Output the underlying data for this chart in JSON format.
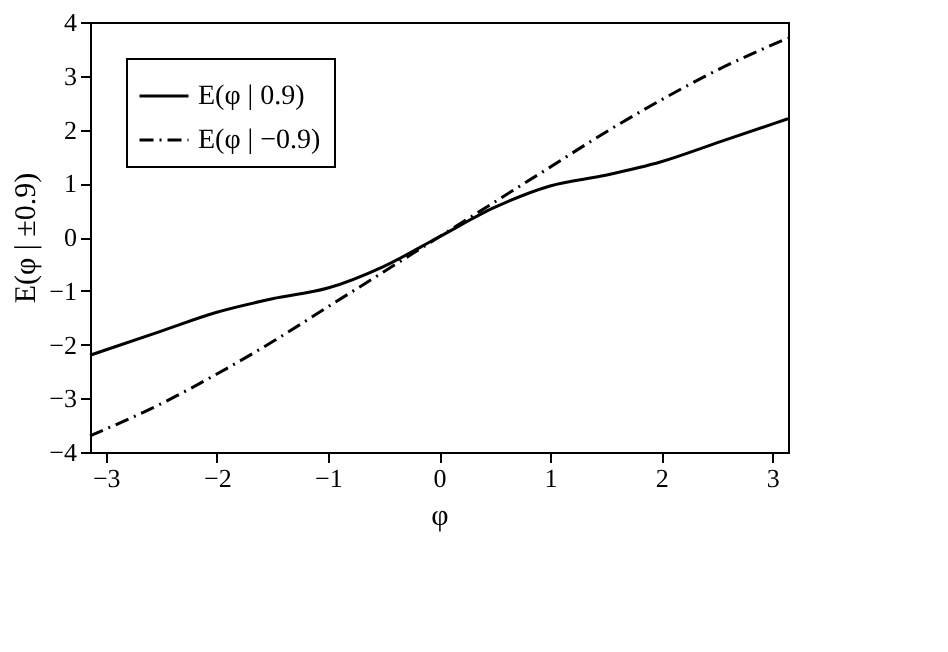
{
  "chart_data": {
    "type": "line",
    "xlabel": "φ",
    "ylabel": "E(φ | ±0.9)",
    "xlim": [
      -3.1416,
      3.1416
    ],
    "xticks": [
      -3,
      -2,
      -1,
      0,
      1,
      2,
      3
    ],
    "ylim": [
      -4,
      4
    ],
    "yticks": [
      -4,
      -3,
      -2,
      -1,
      0,
      1,
      2,
      3,
      4
    ],
    "grid": false,
    "legend": "top left",
    "marker": "none",
    "series": [
      {
        "name": "E(φ | 0.9)",
        "color": "#000000",
        "line_style": "solid",
        "x": [
          -3.1416,
          -2.5,
          -2,
          -1.5,
          -1,
          -0.5,
          0,
          0.5,
          1,
          1.5,
          2,
          2.5,
          3.1416
        ],
        "values": [
          -2.2,
          -1.75,
          -1.4,
          -1.15,
          -0.95,
          -0.55,
          0,
          0.55,
          0.95,
          1.15,
          1.4,
          1.75,
          2.2
        ]
      },
      {
        "name": "E(φ | −0.9)",
        "color": "#000000",
        "line_style": "dashdot",
        "x": [
          -3.1416,
          -2.5,
          -2,
          -1.5,
          -1,
          -0.5,
          0,
          0.5,
          1,
          1.5,
          2,
          2.5,
          3.1416
        ],
        "values": [
          -3.7,
          -3.1,
          -2.55,
          -1.95,
          -1.3,
          -0.65,
          0,
          0.65,
          1.3,
          1.95,
          2.55,
          3.1,
          3.7
        ]
      }
    ]
  }
}
